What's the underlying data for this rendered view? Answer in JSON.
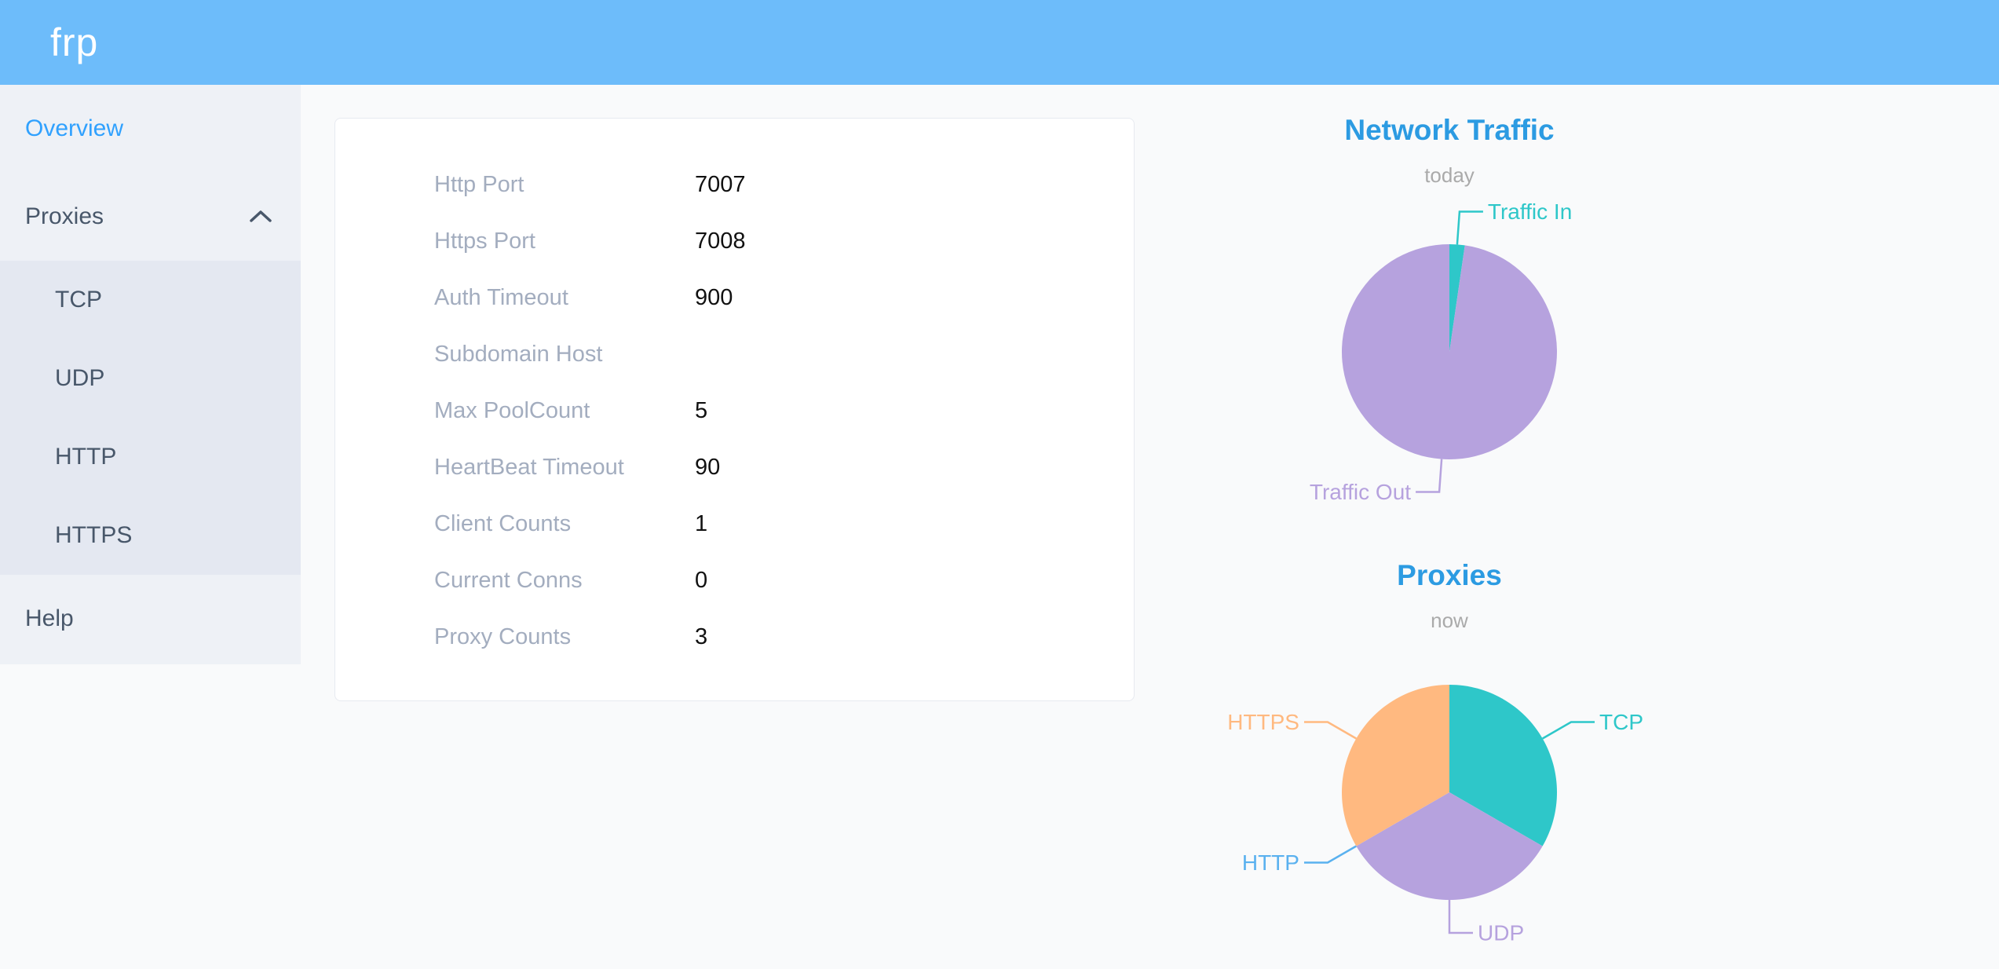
{
  "header": {
    "logo_text": "frp",
    "background": "#6dbcfa"
  },
  "sidebar": {
    "active_color": "#30a1fe",
    "overview": {
      "label": "Overview",
      "active": true
    },
    "proxies": {
      "label": "Proxies",
      "expanded": true,
      "children": [
        {
          "label": "TCP"
        },
        {
          "label": "UDP"
        },
        {
          "label": "HTTP"
        },
        {
          "label": "HTTPS"
        }
      ]
    },
    "help": {
      "label": "Help"
    }
  },
  "server_info": {
    "rows": [
      {
        "label": "Http Port",
        "value": "7007"
      },
      {
        "label": "Https Port",
        "value": "7008"
      },
      {
        "label": "Auth Timeout",
        "value": "900"
      },
      {
        "label": "Subdomain Host",
        "value": ""
      },
      {
        "label": "Max PoolCount",
        "value": "5"
      },
      {
        "label": "HeartBeat Timeout",
        "value": "90"
      },
      {
        "label": "Client Counts",
        "value": "1"
      },
      {
        "label": "Current Conns",
        "value": "0"
      },
      {
        "label": "Proxy Counts",
        "value": "3"
      }
    ]
  },
  "colors": {
    "chart_title_blue": "#2c9be2",
    "chart_subtitle_gray": "#aaaaaa",
    "teal": "#2ec7c9",
    "purple": "#b6a2de",
    "blue": "#5ab1ef",
    "orange": "#ffb980"
  },
  "chart_data": [
    {
      "type": "pie",
      "title": "Network Traffic",
      "subtitle": "today",
      "legend_position": "none",
      "label_style": "outside-leader-lines",
      "value_unit": "percent_of_total_estimated_from_pixels",
      "series": [
        {
          "name": "Traffic In",
          "value": 2.3,
          "color": "#2ec7c9"
        },
        {
          "name": "Traffic Out",
          "value": 97.7,
          "color": "#b6a2de"
        }
      ]
    },
    {
      "type": "pie",
      "title": "Proxies",
      "subtitle": "now",
      "legend_position": "none",
      "label_style": "outside-leader-lines",
      "value_unit": "proxy_count",
      "series": [
        {
          "name": "TCP",
          "value": 1,
          "color": "#2ec7c9"
        },
        {
          "name": "UDP",
          "value": 1,
          "color": "#b6a2de"
        },
        {
          "name": "HTTP",
          "value": 0,
          "color": "#5ab1ef"
        },
        {
          "name": "HTTPS",
          "value": 1,
          "color": "#ffb980"
        }
      ]
    }
  ]
}
